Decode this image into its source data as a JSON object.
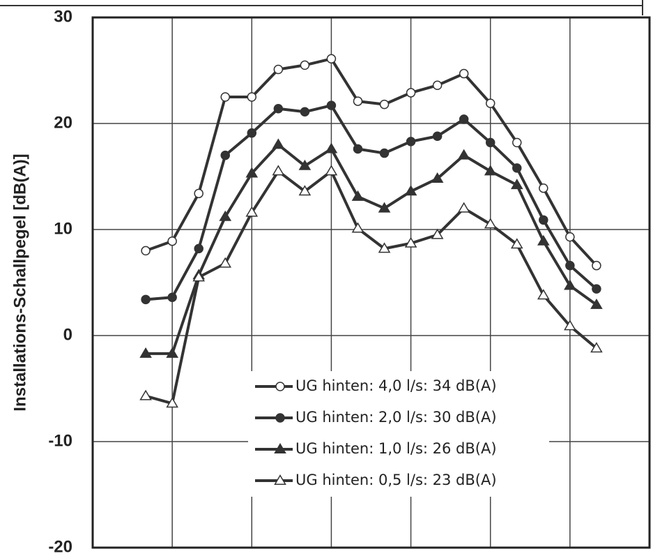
{
  "chart_data": {
    "type": "line",
    "y_label": "Installations-Schallpegel [dB(A)]",
    "categories": [
      null,
      null,
      null,
      null,
      null,
      null,
      null,
      null,
      null,
      null,
      null,
      null,
      null,
      null,
      null,
      null,
      null,
      null
    ],
    "series": [
      {
        "name": "UG hinten: 4,0 l/s: 34 dB(A)",
        "color": "#333333",
        "marker": "open-circle",
        "values": [
          8.0,
          8.9,
          13.4,
          22.5,
          22.5,
          25.1,
          25.5,
          26.1,
          22.1,
          21.8,
          22.9,
          23.6,
          24.7,
          21.9,
          18.2,
          13.9,
          9.3,
          6.6
        ]
      },
      {
        "name": "UG hinten: 2,0 l/s: 30 dB(A)",
        "color": "#333333",
        "marker": "filled-circle",
        "values": [
          3.4,
          3.6,
          8.2,
          17.0,
          19.1,
          21.4,
          21.1,
          21.7,
          17.6,
          17.2,
          18.3,
          18.8,
          20.4,
          18.2,
          15.8,
          10.9,
          6.6,
          4.4
        ]
      },
      {
        "name": "UG hinten: 1,0 l/s: 26 dB(A)",
        "color": "#333333",
        "marker": "filled-triangle",
        "values": [
          -1.7,
          -1.7,
          5.7,
          11.2,
          15.3,
          18.0,
          16.0,
          17.6,
          13.1,
          12.0,
          13.6,
          14.8,
          17.0,
          15.5,
          14.2,
          8.9,
          4.7,
          2.9
        ]
      },
      {
        "name": "UG hinten: 0,5 l/s: 23 dB(A)",
        "color": "#333333",
        "marker": "open-triangle",
        "values": [
          -5.7,
          -6.4,
          5.5,
          6.8,
          11.6,
          15.5,
          13.6,
          15.5,
          10.1,
          8.2,
          8.7,
          9.5,
          12.0,
          10.5,
          8.6,
          3.8,
          0.9,
          -1.2
        ]
      }
    ],
    "ylim": [
      -20,
      30
    ],
    "yticks": [
      -20,
      -10,
      0,
      10,
      20,
      30
    ],
    "grid": true,
    "legend": "lower center"
  }
}
